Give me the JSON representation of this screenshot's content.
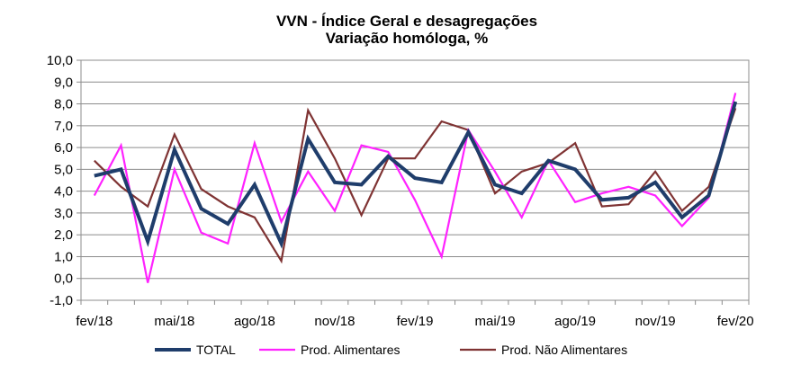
{
  "chart_data": {
    "type": "line",
    "title": "VVN - Índice Geral e desagregações",
    "subtitle": "Variação homóloga, %",
    "xlabel": "",
    "ylabel": "",
    "ylim": [
      -1,
      10
    ],
    "y_ticks": [
      "-1,0",
      "0,0",
      "1,0",
      "2,0",
      "3,0",
      "4,0",
      "5,0",
      "6,0",
      "7,0",
      "8,0",
      "9,0",
      "10,0"
    ],
    "y_tick_values": [
      -1,
      0,
      1,
      2,
      3,
      4,
      5,
      6,
      7,
      8,
      9,
      10
    ],
    "x_tick_labels": [
      "fev/18",
      "mai/18",
      "ago/18",
      "nov/18",
      "fev/19",
      "mai/19",
      "ago/19",
      "nov/19",
      "fev/20"
    ],
    "x_tick_index": [
      0,
      3,
      6,
      9,
      12,
      15,
      18,
      21,
      24
    ],
    "categories": [
      "fev/18",
      "mar/18",
      "abr/18",
      "mai/18",
      "jun/18",
      "jul/18",
      "ago/18",
      "set/18",
      "out/18",
      "nov/18",
      "dez/18",
      "jan/19",
      "fev/19",
      "mar/19",
      "abr/19",
      "mai/19",
      "jun/19",
      "jul/19",
      "ago/19",
      "set/19",
      "out/19",
      "nov/19",
      "dez/19",
      "jan/20",
      "fev/20"
    ],
    "grid": true,
    "legend_position": "bottom",
    "series": [
      {
        "name": "TOTAL",
        "color": "#1f3d6b",
        "values": [
          4.7,
          5.0,
          1.7,
          5.9,
          3.2,
          2.5,
          4.3,
          1.6,
          6.4,
          4.4,
          4.3,
          5.6,
          4.6,
          4.4,
          6.7,
          4.3,
          3.9,
          5.4,
          5.0,
          3.6,
          3.7,
          4.4,
          2.8,
          3.8,
          8.1
        ]
      },
      {
        "name": "Prod. Alimentares",
        "color": "#ff22ff",
        "values": [
          3.8,
          6.1,
          -0.2,
          5.0,
          2.1,
          1.6,
          6.2,
          2.6,
          4.9,
          3.1,
          6.1,
          5.8,
          3.6,
          1.0,
          6.8,
          4.9,
          2.8,
          5.4,
          3.5,
          3.9,
          4.2,
          3.8,
          2.4,
          3.7,
          8.5
        ]
      },
      {
        "name": "Prod. Não Alimentares",
        "color": "#7f3333",
        "values": [
          5.4,
          4.2,
          3.3,
          6.6,
          4.1,
          3.3,
          2.8,
          0.8,
          7.7,
          5.5,
          2.9,
          5.5,
          5.5,
          7.2,
          6.8,
          3.9,
          4.9,
          5.3,
          6.2,
          3.3,
          3.4,
          4.9,
          3.1,
          4.2,
          7.8
        ]
      }
    ]
  }
}
